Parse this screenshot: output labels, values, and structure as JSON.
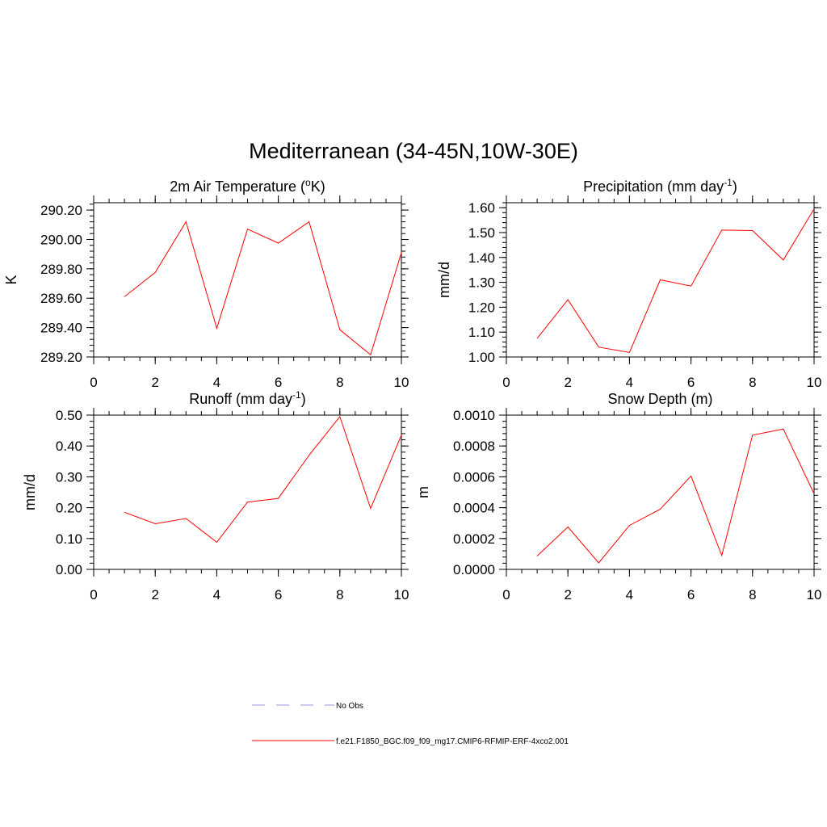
{
  "figure": {
    "title": "Mediterranean (34-45N,10W-30E)"
  },
  "legend": {
    "entries": [
      {
        "label": "No Obs",
        "color": "#9999dd",
        "style": "dashed"
      },
      {
        "label": "f.e21.F1850_BGC.f09_f09_mg17.CMIP6-RFMIP-ERF-4xco2.001",
        "color": "#ff0000",
        "style": "solid"
      }
    ]
  },
  "chart_data": [
    {
      "type": "line",
      "title_main": "2m Air Temperature (",
      "title_unit_sup": "o",
      "title_unit": "K)",
      "ylabel": "K",
      "xlim": [
        0,
        10
      ],
      "ylim": [
        289.2,
        290.25
      ],
      "yticks": [
        "289.20",
        "289.40",
        "289.60",
        "289.80",
        "290.00",
        "290.20"
      ],
      "xticks": [
        "0",
        "2",
        "4",
        "6",
        "8",
        "10"
      ],
      "series": [
        {
          "color": "#ff0000",
          "x": [
            1,
            2,
            3,
            4,
            5,
            6,
            7,
            8,
            9,
            10
          ],
          "y": [
            289.61,
            289.775,
            290.12,
            289.395,
            290.07,
            289.975,
            290.12,
            289.385,
            289.215,
            289.91
          ]
        }
      ]
    },
    {
      "type": "line",
      "title_main": "Precipitation (mm day",
      "title_unit_sup": "-1",
      "title_unit": ")",
      "ylabel": "mm/d",
      "xlim": [
        0,
        10
      ],
      "ylim": [
        1.0,
        1.62
      ],
      "yticks": [
        "1.00",
        "1.10",
        "1.20",
        "1.30",
        "1.40",
        "1.50",
        "1.60"
      ],
      "xticks": [
        "0",
        "2",
        "4",
        "6",
        "8",
        "10"
      ],
      "series": [
        {
          "color": "#ff0000",
          "x": [
            1,
            2,
            3,
            4,
            5,
            6,
            7,
            8,
            9,
            10
          ],
          "y": [
            1.075,
            1.23,
            1.04,
            1.018,
            1.31,
            1.285,
            1.51,
            1.508,
            1.39,
            1.595
          ]
        }
      ]
    },
    {
      "type": "line",
      "title_main": "Runoff (mm day",
      "title_unit_sup": "-1",
      "title_unit": ")",
      "ylabel": "mm/d",
      "xlim": [
        0,
        10
      ],
      "ylim": [
        0.0,
        0.5
      ],
      "yticks": [
        "0.00",
        "0.10",
        "0.20",
        "0.30",
        "0.40",
        "0.50"
      ],
      "xticks": [
        "0",
        "2",
        "4",
        "6",
        "8",
        "10"
      ],
      "series": [
        {
          "color": "#ff0000",
          "x": [
            1,
            2,
            3,
            4,
            5,
            6,
            7,
            8,
            9,
            10
          ],
          "y": [
            0.185,
            0.148,
            0.165,
            0.088,
            0.218,
            0.23,
            0.37,
            0.495,
            0.198,
            0.435
          ]
        }
      ]
    },
    {
      "type": "line",
      "title_main": "Snow Depth (m)",
      "title_unit_sup": "",
      "title_unit": "",
      "ylabel": "m",
      "xlim": [
        0,
        10
      ],
      "ylim": [
        0.0,
        0.001
      ],
      "yticks": [
        "0.0000",
        "0.0002",
        "0.0004",
        "0.0006",
        "0.0008",
        "0.0010"
      ],
      "xticks": [
        "0",
        "2",
        "4",
        "6",
        "8",
        "10"
      ],
      "series": [
        {
          "color": "#ff0000",
          "x": [
            1,
            2,
            3,
            4,
            5,
            6,
            7,
            8,
            9,
            10
          ],
          "y": [
            8.7e-05,
            0.000275,
            4.2e-05,
            0.000285,
            0.00039,
            0.000605,
            9e-05,
            0.00087,
            0.00091,
            0.00049
          ]
        }
      ]
    }
  ]
}
